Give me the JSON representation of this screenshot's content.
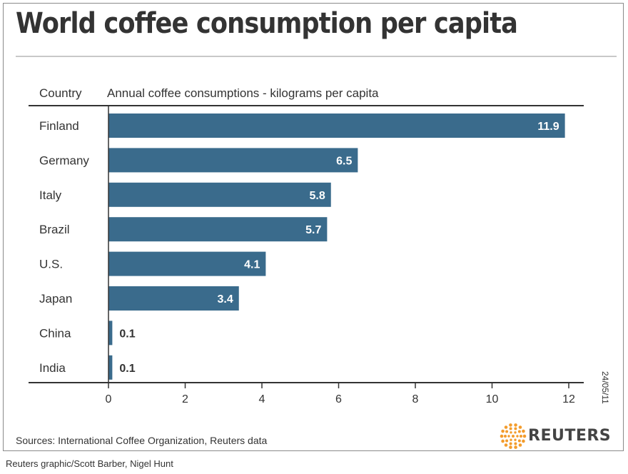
{
  "header": {
    "title": "World coffee consumption per capita",
    "category_header": "Country",
    "value_header": "Annual coffee consumptions - kilograms per capita"
  },
  "footer": {
    "sources": "Sources: International Coffee Organization, Reuters data",
    "credit": "Reuters graphic/Scott Barber, Nigel Hunt",
    "date_stamp": "24/05/11",
    "brand": "REUTERS"
  },
  "colors": {
    "bar": "#3a6b8c",
    "axis": "#333333",
    "logo_orange": "#f39c2c"
  },
  "chart_data": {
    "type": "bar",
    "orientation": "horizontal",
    "xlabel": "",
    "ylabel": "Country",
    "categories": [
      "Finland",
      "Germany",
      "Italy",
      "Brazil",
      "U.S.",
      "Japan",
      "China",
      "India"
    ],
    "values": [
      11.9,
      6.5,
      5.8,
      5.7,
      4.1,
      3.4,
      0.1,
      0.1
    ],
    "value_labels": [
      "11.9",
      "6.5",
      "5.8",
      "5.7",
      "4.1",
      "3.4",
      "0.1",
      "0.1"
    ],
    "xlim": [
      0,
      12.4
    ],
    "xticks": [
      0,
      2,
      4,
      6,
      8,
      10,
      12
    ],
    "grid": false,
    "legend": "none"
  }
}
